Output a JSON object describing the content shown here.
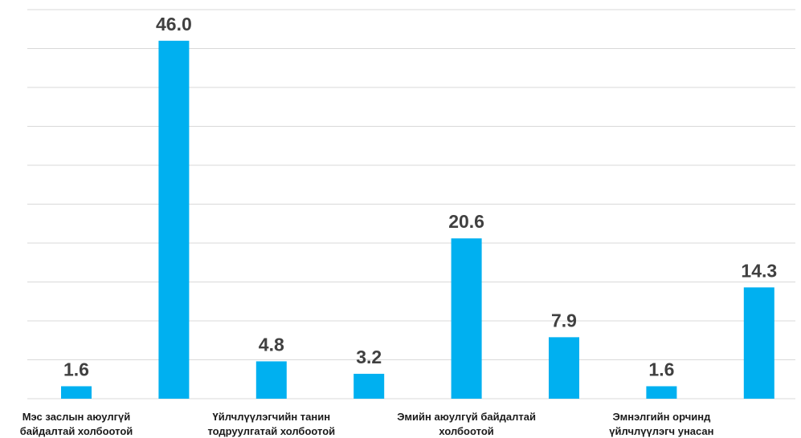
{
  "chart_data": {
    "type": "bar",
    "categories": [
      "Мэс заслын аюулгүй байдалтай холбоотой",
      null,
      "Үйлчлүүлэгчийн танин тодруулгатай холбоотой",
      null,
      "Эмийн аюулгүй байдалтай холбоотой",
      null,
      "Эмнэлгийн орчинд үйлчлүүлэгч унасан",
      null
    ],
    "values": [
      1.6,
      46.0,
      4.8,
      3.2,
      20.6,
      7.9,
      1.6,
      14.3
    ],
    "value_labels": [
      "1.6",
      "46.0",
      "4.8",
      "3.2",
      "20.6",
      "7.9",
      "1.6",
      "14.3"
    ],
    "color": "#00b0f0",
    "ylim": [
      0,
      50
    ],
    "yticks": [
      0,
      5,
      10,
      15,
      20,
      25,
      30,
      35,
      40,
      45,
      50
    ],
    "grid": true
  }
}
